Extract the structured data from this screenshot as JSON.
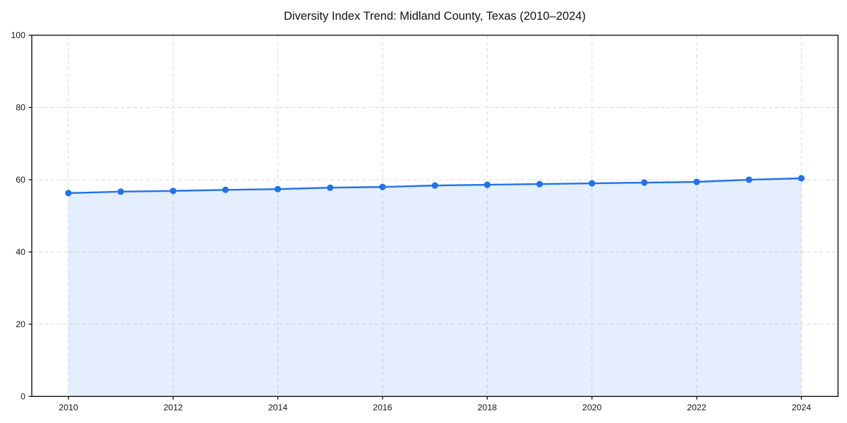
{
  "chart_data": {
    "type": "line",
    "title": "Diversity Index Trend: Midland County, Texas (2010–2024)",
    "x": [
      2010,
      2011,
      2012,
      2013,
      2014,
      2015,
      2016,
      2017,
      2018,
      2019,
      2020,
      2021,
      2022,
      2023,
      2024
    ],
    "series": [
      {
        "name": "Diversity Index",
        "values": [
          56.3,
          56.7,
          56.9,
          57.2,
          57.4,
          57.8,
          58.0,
          58.4,
          58.6,
          58.8,
          59.0,
          59.2,
          59.4,
          60.0,
          60.4
        ]
      }
    ],
    "xlabel": "",
    "ylabel": "",
    "xlim": [
      2009.3,
      2024.7
    ],
    "ylim": [
      0,
      100
    ],
    "xticks": [
      2010,
      2012,
      2014,
      2016,
      2018,
      2020,
      2022,
      2024
    ],
    "yticks": [
      0,
      20,
      40,
      60,
      80,
      100
    ],
    "xtick_labels": [
      "2010",
      "2012",
      "2014",
      "2016",
      "2018",
      "2020",
      "2022",
      "2024"
    ],
    "ytick_labels": [
      "0",
      "20",
      "40",
      "60",
      "80",
      "100"
    ],
    "grid": true,
    "grid_style": "dashed",
    "legend": false,
    "colors": {
      "line": "#2272e8",
      "marker": "#2272e8",
      "area_fill": "rgba(34,114,232,0.12)",
      "grid": "#d9d9d9",
      "spine": "#000000",
      "text": "#141414",
      "background": "#ffffff"
    }
  }
}
